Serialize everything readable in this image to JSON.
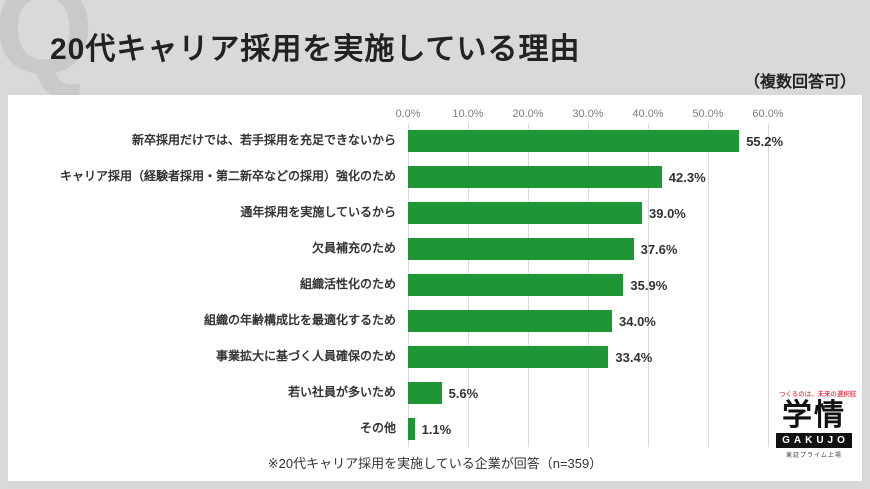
{
  "header": {
    "title": "20代キャリア採用を実施している理由",
    "note": "（複数回答可）",
    "watermark": "Q"
  },
  "chart_data": {
    "type": "bar",
    "orientation": "horizontal",
    "title": "20代キャリア採用を実施している理由",
    "categories": [
      "新卒採用だけでは、若手採用を充足できないから",
      "キャリア採用（経験者採用・第二新卒などの採用）強化のため",
      "通年採用を実施しているから",
      "欠員補充のため",
      "組織活性化のため",
      "組織の年齢構成比を最適化するため",
      "事業拡大に基づく人員確保のため",
      "若い社員が多いため",
      "その他"
    ],
    "values": [
      55.2,
      42.3,
      39.0,
      37.6,
      35.9,
      34.0,
      33.4,
      5.6,
      1.1
    ],
    "value_labels": [
      "55.2%",
      "42.3%",
      "39.0%",
      "37.6%",
      "35.9%",
      "34.0%",
      "33.4%",
      "5.6%",
      "1.1%"
    ],
    "x_ticks": [
      "0.0%",
      "10.0%",
      "20.0%",
      "30.0%",
      "40.0%",
      "50.0%",
      "60.0%"
    ],
    "xlim": [
      0,
      60
    ],
    "grid": "vertical",
    "legend": "none",
    "bar_color": "#1f9636",
    "footnote": "※20代キャリア採用を実施している企業が回答（n=359）"
  },
  "logo": {
    "tagline": "つくるのは、未来の選択肢",
    "name": "学情",
    "romaji": "GAKUJO",
    "listing": "東証プライム上場",
    "accent_color": "#e60012"
  }
}
